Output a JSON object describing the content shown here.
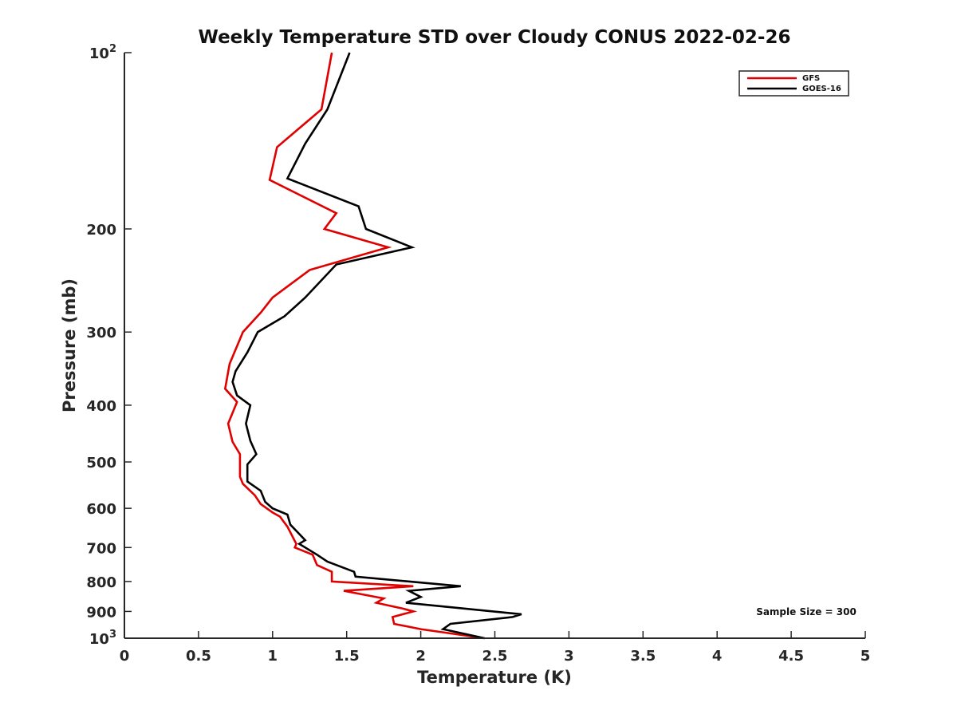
{
  "chart_data": {
    "type": "line",
    "title": "Weekly Temperature STD over Cloudy CONUS 2022-02-26",
    "xlabel": "Temperature (K)",
    "ylabel": "Pressure (mb)",
    "xlim": [
      0,
      5
    ],
    "ylim": [
      100,
      1000
    ],
    "y_scale": "log",
    "y_reversed": true,
    "grid": false,
    "legend_position": "top-right",
    "x_ticks": [
      {
        "value": 0,
        "label": "0"
      },
      {
        "value": 0.5,
        "label": "0.5"
      },
      {
        "value": 1,
        "label": "1"
      },
      {
        "value": 1.5,
        "label": "1.5"
      },
      {
        "value": 2,
        "label": "2"
      },
      {
        "value": 2.5,
        "label": "2.5"
      },
      {
        "value": 3,
        "label": "3"
      },
      {
        "value": 3.5,
        "label": "3.5"
      },
      {
        "value": 4,
        "label": "4"
      },
      {
        "value": 4.5,
        "label": "4.5"
      },
      {
        "value": 5,
        "label": "5"
      }
    ],
    "y_ticks": [
      {
        "value": 100,
        "base": "10",
        "exp": "2"
      },
      {
        "value": 200,
        "label": "200"
      },
      {
        "value": 300,
        "label": "300"
      },
      {
        "value": 400,
        "label": "400"
      },
      {
        "value": 500,
        "label": "500"
      },
      {
        "value": 600,
        "label": "600"
      },
      {
        "value": 700,
        "label": "700"
      },
      {
        "value": 800,
        "label": "800"
      },
      {
        "value": 900,
        "label": "900"
      },
      {
        "value": 1000,
        "base": "10",
        "exp": "3"
      }
    ],
    "annotation": "Sample Size = 300",
    "series": [
      {
        "name": "GFS",
        "color": "#e00000",
        "points": [
          [
            1.4,
            100
          ],
          [
            1.33,
            125
          ],
          [
            1.03,
            145
          ],
          [
            0.98,
            165
          ],
          [
            1.43,
            188
          ],
          [
            1.35,
            200
          ],
          [
            1.78,
            215
          ],
          [
            1.25,
            235
          ],
          [
            1.0,
            262
          ],
          [
            0.92,
            278
          ],
          [
            0.8,
            300
          ],
          [
            0.71,
            340
          ],
          [
            0.68,
            375
          ],
          [
            0.76,
            395
          ],
          [
            0.7,
            430
          ],
          [
            0.73,
            462
          ],
          [
            0.78,
            485
          ],
          [
            0.78,
            530
          ],
          [
            0.8,
            545
          ],
          [
            0.88,
            570
          ],
          [
            0.92,
            590
          ],
          [
            1.0,
            610
          ],
          [
            1.05,
            620
          ],
          [
            1.1,
            645
          ],
          [
            1.16,
            690
          ],
          [
            1.15,
            700
          ],
          [
            1.27,
            720
          ],
          [
            1.3,
            750
          ],
          [
            1.4,
            770
          ],
          [
            1.4,
            800
          ],
          [
            1.95,
            815
          ],
          [
            1.48,
            830
          ],
          [
            1.75,
            855
          ],
          [
            1.7,
            870
          ],
          [
            1.88,
            890
          ],
          [
            1.95,
            900
          ],
          [
            1.81,
            920
          ],
          [
            1.82,
            945
          ],
          [
            2.0,
            965
          ],
          [
            2.43,
            1000
          ]
        ]
      },
      {
        "name": "GOES-16",
        "color": "#000000",
        "points": [
          [
            1.52,
            100
          ],
          [
            1.37,
            125
          ],
          [
            1.22,
            143
          ],
          [
            1.1,
            164
          ],
          [
            1.58,
            183
          ],
          [
            1.63,
            200
          ],
          [
            1.94,
            215
          ],
          [
            1.43,
            230
          ],
          [
            1.22,
            262
          ],
          [
            1.08,
            282
          ],
          [
            0.9,
            300
          ],
          [
            0.83,
            325
          ],
          [
            0.75,
            350
          ],
          [
            0.73,
            365
          ],
          [
            0.76,
            385
          ],
          [
            0.85,
            400
          ],
          [
            0.82,
            430
          ],
          [
            0.85,
            460
          ],
          [
            0.89,
            485
          ],
          [
            0.83,
            505
          ],
          [
            0.83,
            540
          ],
          [
            0.92,
            560
          ],
          [
            0.95,
            585
          ],
          [
            1.0,
            600
          ],
          [
            1.1,
            615
          ],
          [
            1.12,
            640
          ],
          [
            1.22,
            680
          ],
          [
            1.18,
            690
          ],
          [
            1.3,
            720
          ],
          [
            1.37,
            740
          ],
          [
            1.55,
            770
          ],
          [
            1.56,
            785
          ],
          [
            2.27,
            815
          ],
          [
            1.92,
            830
          ],
          [
            2.0,
            850
          ],
          [
            1.9,
            870
          ],
          [
            2.68,
            910
          ],
          [
            2.62,
            920
          ],
          [
            2.2,
            945
          ],
          [
            2.15,
            965
          ],
          [
            2.43,
            1000
          ]
        ]
      }
    ]
  }
}
